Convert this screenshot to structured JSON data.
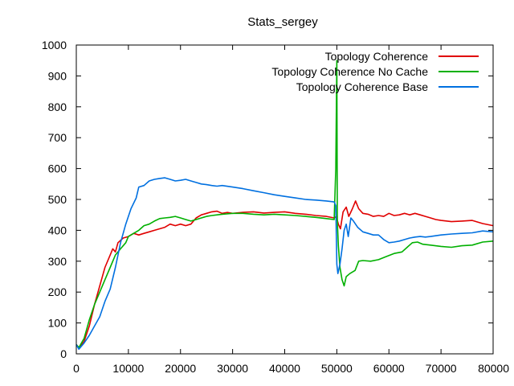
{
  "chart_data": {
    "type": "line",
    "title": "Stats_sergey",
    "xlabel": "",
    "ylabel": "",
    "xlim": [
      0,
      80000
    ],
    "ylim": [
      0,
      1000
    ],
    "xticks": [
      0,
      10000,
      20000,
      30000,
      40000,
      50000,
      60000,
      70000,
      80000
    ],
    "yticks": [
      0,
      100,
      200,
      300,
      400,
      500,
      600,
      700,
      800,
      900,
      1000
    ],
    "grid": false,
    "legend_position": "top-right",
    "series": [
      {
        "name": "Topology Coherence",
        "color": "#e00000",
        "points": [
          [
            0,
            30
          ],
          [
            500,
            20
          ],
          [
            1500,
            40
          ],
          [
            2500,
            90
          ],
          [
            3500,
            160
          ],
          [
            4500,
            220
          ],
          [
            5500,
            280
          ],
          [
            6500,
            320
          ],
          [
            7000,
            340
          ],
          [
            7500,
            330
          ],
          [
            8000,
            360
          ],
          [
            9000,
            375
          ],
          [
            10000,
            380
          ],
          [
            11000,
            390
          ],
          [
            12000,
            385
          ],
          [
            13000,
            390
          ],
          [
            14000,
            395
          ],
          [
            15000,
            400
          ],
          [
            16000,
            405
          ],
          [
            17000,
            410
          ],
          [
            18000,
            420
          ],
          [
            19000,
            415
          ],
          [
            20000,
            420
          ],
          [
            21000,
            415
          ],
          [
            22000,
            420
          ],
          [
            23000,
            440
          ],
          [
            24000,
            450
          ],
          [
            25000,
            455
          ],
          [
            26000,
            460
          ],
          [
            27000,
            462
          ],
          [
            28000,
            455
          ],
          [
            29000,
            458
          ],
          [
            30000,
            455
          ],
          [
            32000,
            458
          ],
          [
            34000,
            460
          ],
          [
            36000,
            456
          ],
          [
            38000,
            458
          ],
          [
            40000,
            460
          ],
          [
            42000,
            455
          ],
          [
            44000,
            452
          ],
          [
            46000,
            448
          ],
          [
            48000,
            445
          ],
          [
            49500,
            440
          ],
          [
            49900,
            445
          ],
          [
            50300,
            420
          ],
          [
            50700,
            405
          ],
          [
            51200,
            460
          ],
          [
            51800,
            475
          ],
          [
            52300,
            445
          ],
          [
            53000,
            470
          ],
          [
            53600,
            495
          ],
          [
            54200,
            470
          ],
          [
            55000,
            455
          ],
          [
            56000,
            452
          ],
          [
            57000,
            445
          ],
          [
            58000,
            448
          ],
          [
            59000,
            445
          ],
          [
            60000,
            455
          ],
          [
            61000,
            448
          ],
          [
            62000,
            450
          ],
          [
            63000,
            455
          ],
          [
            64000,
            450
          ],
          [
            65000,
            455
          ],
          [
            66000,
            450
          ],
          [
            67000,
            445
          ],
          [
            68000,
            440
          ],
          [
            69000,
            435
          ],
          [
            70000,
            432
          ],
          [
            72000,
            428
          ],
          [
            74000,
            430
          ],
          [
            76000,
            432
          ],
          [
            78000,
            422
          ],
          [
            80000,
            415
          ]
        ]
      },
      {
        "name": "Topology Coherence No Cache",
        "color": "#00b000",
        "points": [
          [
            0,
            30
          ],
          [
            500,
            20
          ],
          [
            1500,
            50
          ],
          [
            2500,
            110
          ],
          [
            3500,
            160
          ],
          [
            4500,
            200
          ],
          [
            5500,
            240
          ],
          [
            6500,
            280
          ],
          [
            7500,
            320
          ],
          [
            8500,
            340
          ],
          [
            9500,
            360
          ],
          [
            10000,
            380
          ],
          [
            11000,
            390
          ],
          [
            12000,
            400
          ],
          [
            13000,
            415
          ],
          [
            14000,
            420
          ],
          [
            15000,
            430
          ],
          [
            16000,
            438
          ],
          [
            17000,
            440
          ],
          [
            18000,
            442
          ],
          [
            19000,
            445
          ],
          [
            20000,
            440
          ],
          [
            21000,
            435
          ],
          [
            22000,
            430
          ],
          [
            23000,
            435
          ],
          [
            24000,
            440
          ],
          [
            25000,
            445
          ],
          [
            26000,
            448
          ],
          [
            27000,
            450
          ],
          [
            28000,
            452
          ],
          [
            30000,
            455
          ],
          [
            32000,
            455
          ],
          [
            34000,
            452
          ],
          [
            36000,
            450
          ],
          [
            38000,
            452
          ],
          [
            40000,
            450
          ],
          [
            42000,
            448
          ],
          [
            44000,
            445
          ],
          [
            46000,
            442
          ],
          [
            48000,
            438
          ],
          [
            49500,
            435
          ],
          [
            49800,
            600
          ],
          [
            50000,
            950
          ],
          [
            50100,
            430
          ],
          [
            50300,
            350
          ],
          [
            50600,
            280
          ],
          [
            51000,
            240
          ],
          [
            51400,
            220
          ],
          [
            51800,
            250
          ],
          [
            52500,
            260
          ],
          [
            53500,
            270
          ],
          [
            54200,
            300
          ],
          [
            55000,
            302
          ],
          [
            56500,
            300
          ],
          [
            58000,
            305
          ],
          [
            59500,
            315
          ],
          [
            61000,
            325
          ],
          [
            62500,
            330
          ],
          [
            63500,
            345
          ],
          [
            64500,
            360
          ],
          [
            65500,
            362
          ],
          [
            66500,
            355
          ],
          [
            68000,
            352
          ],
          [
            70000,
            348
          ],
          [
            72000,
            345
          ],
          [
            74000,
            350
          ],
          [
            76000,
            352
          ],
          [
            78000,
            362
          ],
          [
            80000,
            365
          ]
        ]
      },
      {
        "name": "Topology Coherence Base",
        "color": "#0070e0",
        "points": [
          [
            0,
            30
          ],
          [
            500,
            15
          ],
          [
            1500,
            35
          ],
          [
            2500,
            60
          ],
          [
            3500,
            90
          ],
          [
            4500,
            120
          ],
          [
            5500,
            170
          ],
          [
            6500,
            210
          ],
          [
            7500,
            280
          ],
          [
            8500,
            360
          ],
          [
            9500,
            420
          ],
          [
            10500,
            470
          ],
          [
            11500,
            505
          ],
          [
            12000,
            540
          ],
          [
            13000,
            545
          ],
          [
            14000,
            560
          ],
          [
            15000,
            565
          ],
          [
            16000,
            568
          ],
          [
            17000,
            570
          ],
          [
            18000,
            565
          ],
          [
            19000,
            560
          ],
          [
            20000,
            562
          ],
          [
            21000,
            565
          ],
          [
            22000,
            560
          ],
          [
            23000,
            555
          ],
          [
            24000,
            550
          ],
          [
            25000,
            548
          ],
          [
            26000,
            545
          ],
          [
            27000,
            543
          ],
          [
            28000,
            545
          ],
          [
            30000,
            540
          ],
          [
            32000,
            535
          ],
          [
            34000,
            528
          ],
          [
            36000,
            522
          ],
          [
            38000,
            515
          ],
          [
            40000,
            510
          ],
          [
            42000,
            505
          ],
          [
            44000,
            500
          ],
          [
            46000,
            498
          ],
          [
            48000,
            495
          ],
          [
            49500,
            492
          ],
          [
            49800,
            480
          ],
          [
            50000,
            290
          ],
          [
            50200,
            260
          ],
          [
            50600,
            290
          ],
          [
            51000,
            340
          ],
          [
            51400,
            400
          ],
          [
            51800,
            420
          ],
          [
            52200,
            380
          ],
          [
            52700,
            440
          ],
          [
            53200,
            430
          ],
          [
            54000,
            410
          ],
          [
            55000,
            395
          ],
          [
            56000,
            390
          ],
          [
            57000,
            385
          ],
          [
            58000,
            385
          ],
          [
            59000,
            370
          ],
          [
            60000,
            360
          ],
          [
            61000,
            362
          ],
          [
            62000,
            365
          ],
          [
            63000,
            370
          ],
          [
            64000,
            375
          ],
          [
            65000,
            378
          ],
          [
            66000,
            380
          ],
          [
            67000,
            378
          ],
          [
            68000,
            380
          ],
          [
            70000,
            385
          ],
          [
            72000,
            388
          ],
          [
            74000,
            390
          ],
          [
            76000,
            392
          ],
          [
            78000,
            398
          ],
          [
            80000,
            395
          ]
        ]
      }
    ]
  }
}
